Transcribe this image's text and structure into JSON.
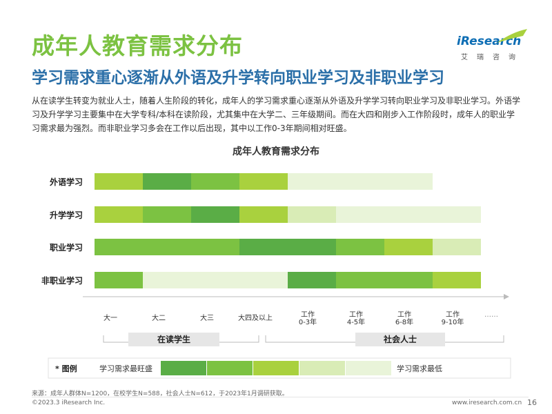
{
  "page": {
    "title": "成年人教育需求分布",
    "subtitle": "学习需求重心逐渐从外语及升学转向职业学习及非职业学习",
    "body": "从在读学生转变为就业人士，随着人生阶段的转化，成年人的学习需求重心逐渐从外语及升学学习转向职业学习及非职业学习。外语学习及升学学习主要集中在大学专科/本科在读阶段，尤其集中在大学二、三年级期间。而在大四和刚步入工作阶段时，成年人的职业学习需求最为强烈。而非职业学习多会在工作以后出现，其中以工作0-3年期间相对旺盛。"
  },
  "logo": {
    "word": "iResearch",
    "cn": "艾瑞咨询"
  },
  "colors": {
    "level": [
      "#e9f4d9",
      "#d9ecb6",
      "#a9d13e",
      "#7cc242",
      "#5aad46"
    ],
    "title_green": "#7cc242",
    "subtitle_blue": "#2b6fa8"
  },
  "chart_data": {
    "type": "heatmap",
    "title": "成年人教育需求分布",
    "rows": [
      "外语学习",
      "升学学习",
      "职业学习",
      "非职业学习"
    ],
    "columns": [
      {
        "label": "大一"
      },
      {
        "label": "大二"
      },
      {
        "label": "大三"
      },
      {
        "label": "大四及以上"
      },
      {
        "label": "工作\n0-3年"
      },
      {
        "label": "工作\n4-5年"
      },
      {
        "label": "工作\n6-8年"
      },
      {
        "label": "工作\n9-10年"
      }
    ],
    "more": "……",
    "levels_scale": "1 = 学习需求最低, 5 = 学习需求最旺盛",
    "values": [
      [
        3,
        5,
        4,
        3,
        1,
        1,
        1,
        0
      ],
      [
        3,
        4,
        5,
        3,
        2,
        1,
        1,
        1
      ],
      [
        4,
        4,
        4,
        5,
        5,
        4,
        3,
        2
      ],
      [
        4,
        1,
        1,
        1,
        5,
        4,
        4,
        3
      ]
    ],
    "groups": [
      {
        "label": "在读学生",
        "from": 0,
        "to": 3
      },
      {
        "label": "社会人士",
        "from": 4,
        "to": 7
      }
    ],
    "legend": {
      "title": "* 图例",
      "high": "学习需求最旺盛",
      "low": "学习需求最低",
      "levels": [
        5,
        4,
        3,
        2,
        1
      ]
    }
  },
  "footer": {
    "source": "来源：成年人群体N=1200，在校学生N=588，社会人士N=612，于2023年1月调研获取。",
    "copyright": "©2023.3 iResearch Inc.",
    "url": "www.iresearch.com.cn",
    "page": "16"
  }
}
